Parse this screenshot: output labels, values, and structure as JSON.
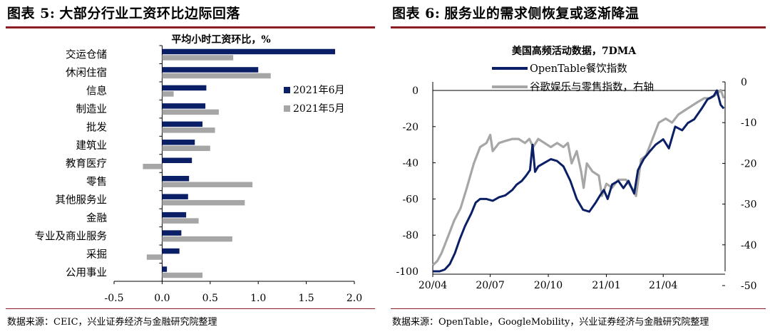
{
  "left": {
    "figure_label": "图表 5:",
    "figure_title": "大部分行业工资环比边际回落",
    "source": "数据来源：CEIC，兴业证券经济与金融研究院整理"
  },
  "right": {
    "figure_label": "图表 6:",
    "figure_title": "服务业的需求侧恢复或逐渐降温",
    "source": "数据来源：OpenTable，GoogleMobility，兴业证券经济与金融研究院整理"
  },
  "colors": {
    "navy": "#0a1f66",
    "gray": "#a6a6a6",
    "rule": "#8a1c22"
  },
  "chart_data": [
    {
      "type": "bar",
      "orientation": "horizontal",
      "title": "平均小时工资环比，%",
      "categories": [
        "交运仓储",
        "休闲住宿",
        "信息",
        "制造业",
        "批发",
        "建筑业",
        "教育医疗",
        "零售",
        "其他服务业",
        "金融",
        "专业及商业服务",
        "采掘",
        "公用事业"
      ],
      "series": [
        {
          "name": "2021年6月",
          "color": "#0a1f66",
          "values": [
            1.8,
            1.0,
            0.46,
            0.45,
            0.42,
            0.34,
            0.31,
            0.28,
            0.27,
            0.25,
            0.2,
            0.18,
            0.05
          ]
        },
        {
          "name": "2021年5月",
          "color": "#a6a6a6",
          "values": [
            0.74,
            1.13,
            0.12,
            0.59,
            0.55,
            0.5,
            -0.2,
            0.94,
            0.86,
            0.38,
            0.73,
            -0.16,
            0.42
          ]
        }
      ],
      "xlim": [
        -0.5,
        2.0
      ],
      "xticks": [
        "-0.5",
        "0.0",
        "0.5",
        "1.0",
        "1.5",
        "2.0"
      ],
      "legend_position": "right-middle"
    },
    {
      "type": "line",
      "title": "美国高频活动数据，7DMA",
      "x_range": [
        "2020-04",
        "2021-07"
      ],
      "xticks": [
        "20/04",
        "20/07",
        "20/10",
        "21/01",
        "21/04"
      ],
      "ylim_left": [
        -100,
        0
      ],
      "yticks_left": [
        "0",
        "-20",
        "-40",
        "-60",
        "-80",
        "-100"
      ],
      "ylim_right": [
        -50,
        0
      ],
      "yticks_right": [
        "0",
        "-10",
        "-20",
        "-30",
        "-40",
        "-50"
      ],
      "legend_position": "top-left",
      "series": [
        {
          "name": "OpenTable餐饮指数",
          "axis": "left",
          "color": "#0a1f66",
          "points": [
            [
              "2020-04-01",
              -100
            ],
            [
              "2020-04-12",
              -100
            ],
            [
              "2020-04-20",
              -99
            ],
            [
              "2020-04-28",
              -96
            ],
            [
              "2020-05-06",
              -90
            ],
            [
              "2020-05-14",
              -82
            ],
            [
              "2020-05-22",
              -75
            ],
            [
              "2020-06-01",
              -68
            ],
            [
              "2020-06-08",
              -62
            ],
            [
              "2020-06-15",
              -60
            ],
            [
              "2020-06-25",
              -60
            ],
            [
              "2020-07-05",
              -61
            ],
            [
              "2020-07-15",
              -59
            ],
            [
              "2020-07-25",
              -58
            ],
            [
              "2020-08-05",
              -55
            ],
            [
              "2020-08-12",
              -52
            ],
            [
              "2020-08-20",
              -50
            ],
            [
              "2020-08-27",
              -47
            ],
            [
              "2020-09-02",
              -44
            ],
            [
              "2020-09-06",
              -30
            ],
            [
              "2020-09-10",
              -45
            ],
            [
              "2020-09-15",
              -42
            ],
            [
              "2020-09-25",
              -40
            ],
            [
              "2020-10-05",
              -38
            ],
            [
              "2020-10-15",
              -39
            ],
            [
              "2020-10-25",
              -42
            ],
            [
              "2020-11-05",
              -50
            ],
            [
              "2020-11-15",
              -60
            ],
            [
              "2020-11-25",
              -66
            ],
            [
              "2020-12-05",
              -67
            ],
            [
              "2020-12-15",
              -62
            ],
            [
              "2020-12-22",
              -58
            ],
            [
              "2020-12-28",
              -55
            ],
            [
              "2021-01-03",
              -60
            ],
            [
              "2021-01-10",
              -52
            ],
            [
              "2021-01-20",
              -50
            ],
            [
              "2021-01-28",
              -54
            ],
            [
              "2021-02-05",
              -50
            ],
            [
              "2021-02-14",
              -57
            ],
            [
              "2021-02-20",
              -44
            ],
            [
              "2021-03-01",
              -38
            ],
            [
              "2021-03-10",
              -34
            ],
            [
              "2021-03-20",
              -30
            ],
            [
              "2021-04-01",
              -27
            ],
            [
              "2021-04-10",
              -32
            ],
            [
              "2021-04-20",
              -20
            ],
            [
              "2021-05-01",
              -22
            ],
            [
              "2021-05-10",
              -18
            ],
            [
              "2021-05-20",
              -16
            ],
            [
              "2021-06-01",
              -10
            ],
            [
              "2021-06-10",
              -5
            ],
            [
              "2021-06-20",
              -3
            ],
            [
              "2021-06-25",
              0
            ],
            [
              "2021-07-01",
              -8
            ],
            [
              "2021-07-06",
              -10
            ]
          ]
        },
        {
          "name": "谷歌娱乐与零售指数，右轴",
          "axis": "right",
          "color": "#a6a6a6",
          "points": [
            [
              "2020-04-01",
              -45
            ],
            [
              "2020-04-08",
              -44
            ],
            [
              "2020-04-15",
              -42
            ],
            [
              "2020-04-25",
              -38
            ],
            [
              "2020-05-05",
              -34
            ],
            [
              "2020-05-15",
              -31
            ],
            [
              "2020-05-25",
              -26
            ],
            [
              "2020-06-05",
              -20
            ],
            [
              "2020-06-15",
              -16
            ],
            [
              "2020-06-25",
              -15
            ],
            [
              "2020-07-01",
              -13
            ],
            [
              "2020-07-05",
              -17
            ],
            [
              "2020-07-15",
              -15
            ],
            [
              "2020-07-25",
              -14.5
            ],
            [
              "2020-08-05",
              -14
            ],
            [
              "2020-08-15",
              -14
            ],
            [
              "2020-08-25",
              -15
            ],
            [
              "2020-09-01",
              -14
            ],
            [
              "2020-09-07",
              -16
            ],
            [
              "2020-09-15",
              -14
            ],
            [
              "2020-09-25",
              -15
            ],
            [
              "2020-10-05",
              -16
            ],
            [
              "2020-10-15",
              -15
            ],
            [
              "2020-10-25",
              -16
            ],
            [
              "2020-11-01",
              -15
            ],
            [
              "2020-11-07",
              -20
            ],
            [
              "2020-11-15",
              -17
            ],
            [
              "2020-11-22",
              -22
            ],
            [
              "2020-11-26",
              -26
            ],
            [
              "2020-12-01",
              -20
            ],
            [
              "2020-12-10",
              -22
            ],
            [
              "2020-12-20",
              -23
            ],
            [
              "2020-12-25",
              -28
            ],
            [
              "2021-01-01",
              -25
            ],
            [
              "2021-01-10",
              -26
            ],
            [
              "2021-01-20",
              -24
            ],
            [
              "2021-02-01",
              -24
            ],
            [
              "2021-02-10",
              -26
            ],
            [
              "2021-02-17",
              -28
            ],
            [
              "2021-02-25",
              -19
            ],
            [
              "2021-03-05",
              -18
            ],
            [
              "2021-03-15",
              -14
            ],
            [
              "2021-03-25",
              -10
            ],
            [
              "2021-04-05",
              -9
            ],
            [
              "2021-04-15",
              -10
            ],
            [
              "2021-04-25",
              -8
            ],
            [
              "2021-05-05",
              -7
            ],
            [
              "2021-05-15",
              -6
            ],
            [
              "2021-05-25",
              -5
            ],
            [
              "2021-06-05",
              -4
            ],
            [
              "2021-06-15",
              -4
            ],
            [
              "2021-06-25",
              -3
            ],
            [
              "2021-07-01",
              -2
            ],
            [
              "2021-07-06",
              -4
            ]
          ]
        }
      ]
    }
  ]
}
